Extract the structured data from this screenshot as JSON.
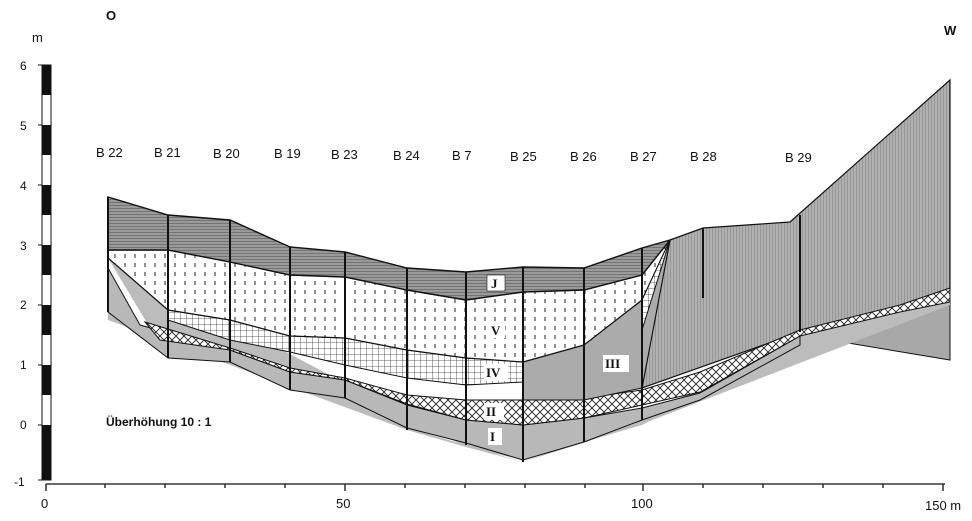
{
  "direction": {
    "left": "O",
    "right": "W"
  },
  "y_axis": {
    "unit": "m",
    "ticks": [
      "6",
      "5",
      "4",
      "3",
      "2",
      "1",
      "0",
      "-1"
    ]
  },
  "x_axis": {
    "ticks": [
      "0",
      "50",
      "100"
    ],
    "end_label": "150 m"
  },
  "boreholes": [
    "B 22",
    "B 21",
    "B 20",
    "B 19",
    "B 23",
    "B 24",
    "B 7",
    "B 25",
    "B 26",
    "B 27",
    "B 28",
    "B 29"
  ],
  "layers": {
    "I": "I",
    "II": "II",
    "III": "III",
    "IV": "IV",
    "V": "V",
    "J": "J"
  },
  "exaggeration_note": "Überhöhung 10 : 1",
  "colors": {
    "ink": "#111111",
    "gray_light": "#c8c8c8",
    "gray_mid": "#a8a8a8",
    "gray_dark": "#8c8c8c",
    "white": "#ffffff"
  }
}
